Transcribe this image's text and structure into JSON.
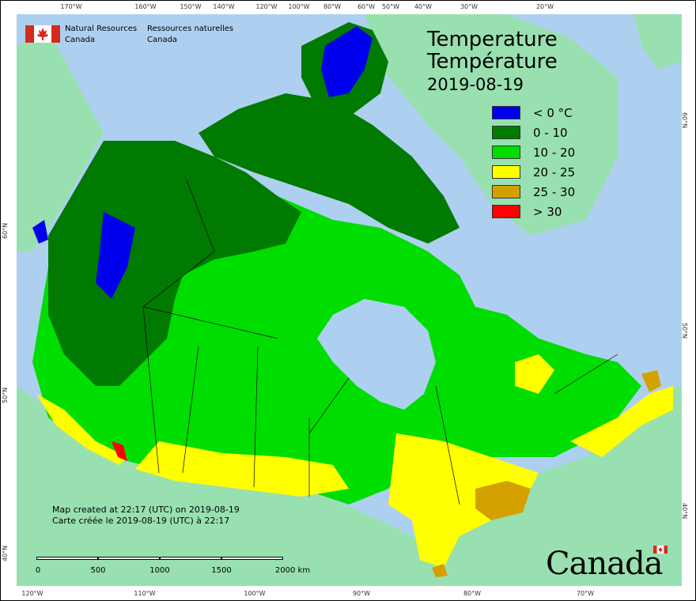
{
  "agency": {
    "name_en_line1": "Natural Resources",
    "name_en_line2": "Canada",
    "name_fr_line1": "Ressources naturelles",
    "name_fr_line2": "Canada"
  },
  "title": {
    "en": "Temperature",
    "fr": "Température",
    "date": "2019-08-19"
  },
  "legend": [
    {
      "label": "< 0 °C",
      "color": "#0000ee"
    },
    {
      "label": "0 - 10",
      "color": "#007a00"
    },
    {
      "label": "10 - 20",
      "color": "#00dd00"
    },
    {
      "label": "20 - 25",
      "color": "#ffff00"
    },
    {
      "label": "25 - 30",
      "color": "#d4a000"
    },
    {
      "label": "> 30",
      "color": "#ff0000"
    }
  ],
  "credit": {
    "en": "Map created at 22:17 (UTC) on 2019-08-19",
    "fr": "Carte créée le 2019-08-19 (UTC) à 22:17"
  },
  "scale": {
    "labels": [
      "0",
      "500",
      "1000",
      "1500",
      "2000 km"
    ]
  },
  "wordmark": "Canada",
  "graticule": {
    "top_longitudes": [
      "170°W",
      "160°W",
      "150°W",
      "140°W",
      "120°W",
      "100°W",
      "80°W",
      "60°W",
      "50°W",
      "40°W",
      "30°W",
      "20°W"
    ],
    "bottom_longitudes": [
      "120°W",
      "110°W",
      "100°W",
      "90°W",
      "80°W",
      "70°W"
    ],
    "left_latitudes": [
      "60°N",
      "50°N",
      "40°N"
    ],
    "right_latitudes": [
      "60°N",
      "50°N",
      "40°N"
    ]
  },
  "colors": {
    "ocean": "#aed0f0",
    "foreign_land": "#99e0b0"
  }
}
